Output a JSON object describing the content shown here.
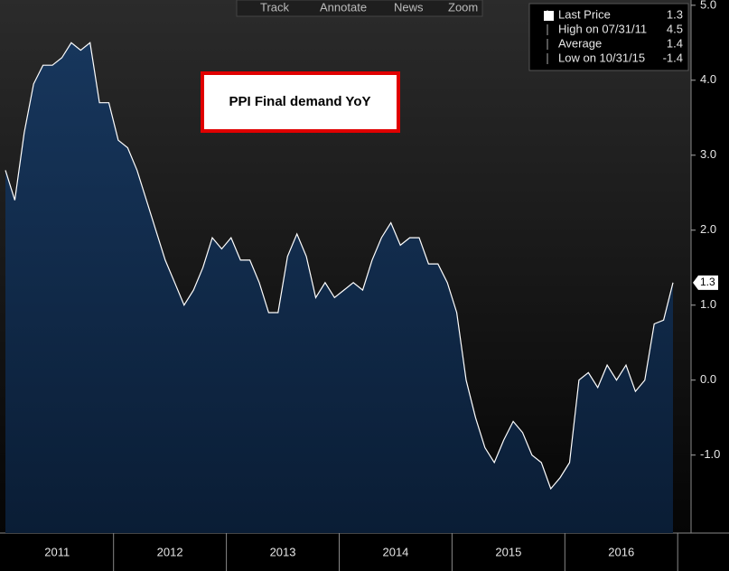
{
  "toolbar": [
    "Track",
    "Annotate",
    "News",
    "Zoom"
  ],
  "chart_data": {
    "type": "area",
    "title": "PPI Final demand YoY",
    "color": "#ffffff",
    "fill": "#0e2b4d",
    "values": [
      2.8,
      2.4,
      3.3,
      3.95,
      4.2,
      4.2,
      4.3,
      4.5,
      4.4,
      4.5,
      3.7,
      3.7,
      3.2,
      3.1,
      2.8,
      2.4,
      2.0,
      1.6,
      1.3,
      1.0,
      1.2,
      1.5,
      1.9,
      1.75,
      1.9,
      1.6,
      1.6,
      1.3,
      0.9,
      0.9,
      1.65,
      1.95,
      1.65,
      1.1,
      1.3,
      1.1,
      1.2,
      1.3,
      1.2,
      1.6,
      1.9,
      2.1,
      1.8,
      1.9,
      1.9,
      1.55,
      1.55,
      1.3,
      0.9,
      0.0,
      -0.5,
      -0.9,
      -1.1,
      -0.8,
      -0.55,
      -0.7,
      -1.0,
      -1.1,
      -1.45,
      -1.3,
      -1.1,
      0.0,
      0.1,
      -0.1,
      0.2,
      0.0,
      0.2,
      -0.15,
      0.0,
      0.75,
      0.8,
      1.3
    ],
    "xticks": [
      "2011",
      "2012",
      "2013",
      "2014",
      "2015",
      "2016"
    ],
    "ylim": [
      -2.04,
      5.07
    ],
    "yticks": [
      {
        "value": 5,
        "label": "5.0"
      },
      {
        "value": 4,
        "label": "4.0"
      },
      {
        "value": 3,
        "label": "3.0"
      },
      {
        "value": 2,
        "label": "2.0"
      },
      {
        "value": 1,
        "label": "1.0"
      },
      {
        "value": 0,
        "label": "0.0"
      },
      {
        "value": -1,
        "label": "-1.0"
      }
    ],
    "legend": [
      {
        "name": "Last Price",
        "value": "1.3"
      },
      {
        "name": "High on 07/31/11",
        "value": "4.5"
      },
      {
        "name": "Average",
        "value": "1.4"
      },
      {
        "name": "Low on 10/31/15",
        "value": "-1.4"
      }
    ]
  }
}
